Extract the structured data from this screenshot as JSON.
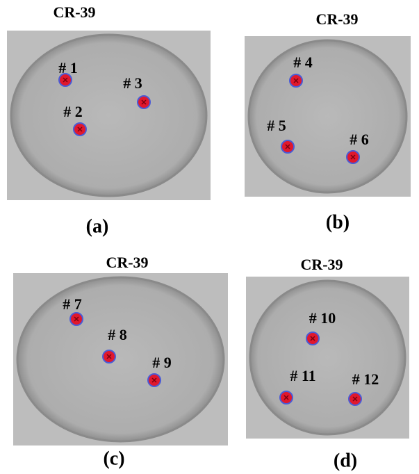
{
  "panels": [
    {
      "title": "CR-39",
      "caption": "(a)",
      "points": [
        {
          "label": "# 1"
        },
        {
          "label": "# 2"
        },
        {
          "label": "# 3"
        }
      ]
    },
    {
      "title": "CR-39",
      "caption": "(b)",
      "points": [
        {
          "label": "# 4"
        },
        {
          "label": "# 5"
        },
        {
          "label": "# 6"
        }
      ]
    },
    {
      "title": "CR-39",
      "caption": "(c)",
      "points": [
        {
          "label": "# 7"
        },
        {
          "label": "# 8"
        },
        {
          "label": "# 9"
        }
      ]
    },
    {
      "title": "CR-39",
      "caption": "(d)",
      "points": [
        {
          "label": "# 10"
        },
        {
          "label": "# 11"
        },
        {
          "label": "# 12"
        }
      ]
    }
  ]
}
